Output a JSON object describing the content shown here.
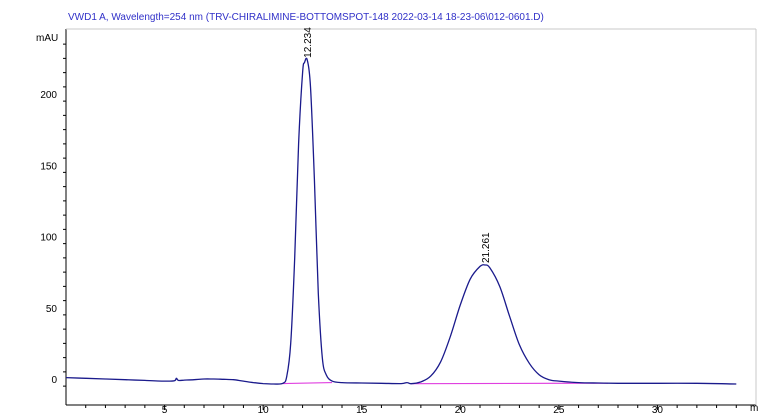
{
  "chart_data": {
    "type": "line",
    "title": "VWD1 A, Wavelength=254 nm (TRV-CHIRALIMINE-BOTTOMSPOT-148 2022-03-14 18-23-06\\012-0601.D)",
    "ylabel": "mAU",
    "xlabel": "mi",
    "xlim": [
      0,
      35
    ],
    "ylim": [
      -5,
      243
    ],
    "x_ticks": [
      5,
      10,
      15,
      20,
      25,
      30
    ],
    "y_ticks": [
      0,
      50,
      100,
      150,
      200
    ],
    "colors": {
      "trace": "#1a1a8c",
      "baseline": "#e040e0",
      "title": "#3030c8",
      "axis": "#000000"
    },
    "peaks": [
      {
        "label": "12.234",
        "rt": 12.234,
        "height": 224
      },
      {
        "label": "21.261",
        "rt": 21.261,
        "height": 80
      }
    ],
    "series": [
      {
        "x": [
          0,
          1,
          2,
          3,
          4,
          5,
          5.5,
          5.6,
          5.7,
          6,
          6.5,
          7,
          7.5,
          8,
          8.5,
          9,
          9.5,
          10,
          10.5,
          11,
          11.2,
          11.4,
          11.6,
          11.8,
          12,
          12.1,
          12.234,
          12.4,
          12.6,
          12.8,
          13,
          13.2,
          13.5,
          14,
          15,
          16,
          17,
          17.3,
          17.5,
          18,
          18.5,
          19,
          19.5,
          20,
          20.5,
          21,
          21.261,
          21.5,
          22,
          22.5,
          23,
          23.5,
          24,
          24.5,
          25,
          26,
          27,
          28,
          30,
          32,
          34
        ],
        "y": [
          1,
          0.5,
          0,
          -0.5,
          -1,
          -1.5,
          -1.2,
          0.5,
          -1,
          -0.8,
          -0.5,
          0,
          0,
          -0.2,
          -0.5,
          -1.5,
          -2.5,
          -3.2,
          -3.5,
          -3,
          2,
          25,
          85,
          165,
          215,
          222,
          224,
          205,
          140,
          60,
          15,
          3,
          -1.5,
          -2.5,
          -2.8,
          -3,
          -3.2,
          -2.5,
          -3.3,
          -2,
          2,
          12,
          30,
          52,
          70,
          79,
          80,
          78,
          65,
          44,
          24,
          11,
          3,
          -0.5,
          -1.5,
          -2.5,
          -2.8,
          -3,
          -3,
          -3,
          -3.5
        ]
      }
    ],
    "baselines": [
      {
        "x": [
          11.0,
          13.5
        ],
        "y": [
          -3.2,
          -2.5
        ]
      },
      {
        "x": [
          17.5,
          27.5
        ],
        "y": [
          -3.3,
          -2.9
        ]
      }
    ]
  }
}
